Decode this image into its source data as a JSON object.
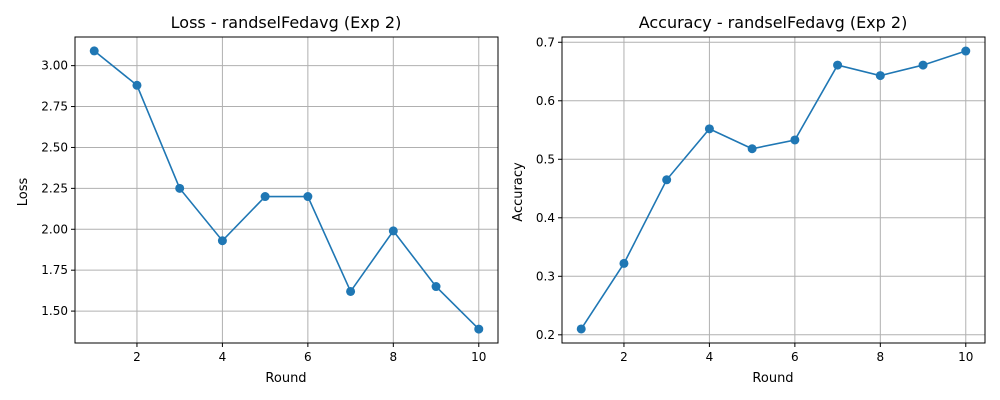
{
  "chart_data": [
    {
      "type": "line",
      "title": "Loss - randselFedavg  (Exp 2)",
      "xlabel": "Round",
      "ylabel": "Loss",
      "x": [
        1,
        2,
        3,
        4,
        5,
        6,
        7,
        8,
        9,
        10
      ],
      "series": [
        {
          "values": [
            3.09,
            2.88,
            2.25,
            1.93,
            2.2,
            2.2,
            1.62,
            1.99,
            1.65,
            1.39
          ]
        }
      ],
      "xlim": [
        0.55,
        10.45
      ],
      "ylim": [
        1.305,
        3.175
      ],
      "xticks": [
        2,
        4,
        6,
        8,
        10
      ],
      "yticks": [
        1.5,
        1.75,
        2.0,
        2.25,
        2.5,
        2.75,
        3.0
      ],
      "ytick_labels": [
        "1.50",
        "1.75",
        "2.00",
        "2.25",
        "2.50",
        "2.75",
        "3.00"
      ],
      "grid": true,
      "color": "#1f77b4",
      "marker": "circle"
    },
    {
      "type": "line",
      "title": "Accuracy - randselFedavg  (Exp 2)",
      "xlabel": "Round",
      "ylabel": "Accuracy",
      "x": [
        1,
        2,
        3,
        4,
        5,
        6,
        7,
        8,
        9,
        10
      ],
      "series": [
        {
          "values": [
            0.21,
            0.322,
            0.465,
            0.552,
            0.518,
            0.533,
            0.661,
            0.643,
            0.661,
            0.685
          ]
        }
      ],
      "xlim": [
        0.55,
        10.45
      ],
      "ylim": [
        0.186,
        0.709
      ],
      "xticks": [
        2,
        4,
        6,
        8,
        10
      ],
      "yticks": [
        0.2,
        0.3,
        0.4,
        0.5,
        0.6,
        0.7
      ],
      "ytick_labels": [
        "0.2",
        "0.3",
        "0.4",
        "0.5",
        "0.6",
        "0.7"
      ],
      "grid": true,
      "color": "#1f77b4",
      "marker": "circle"
    }
  ]
}
